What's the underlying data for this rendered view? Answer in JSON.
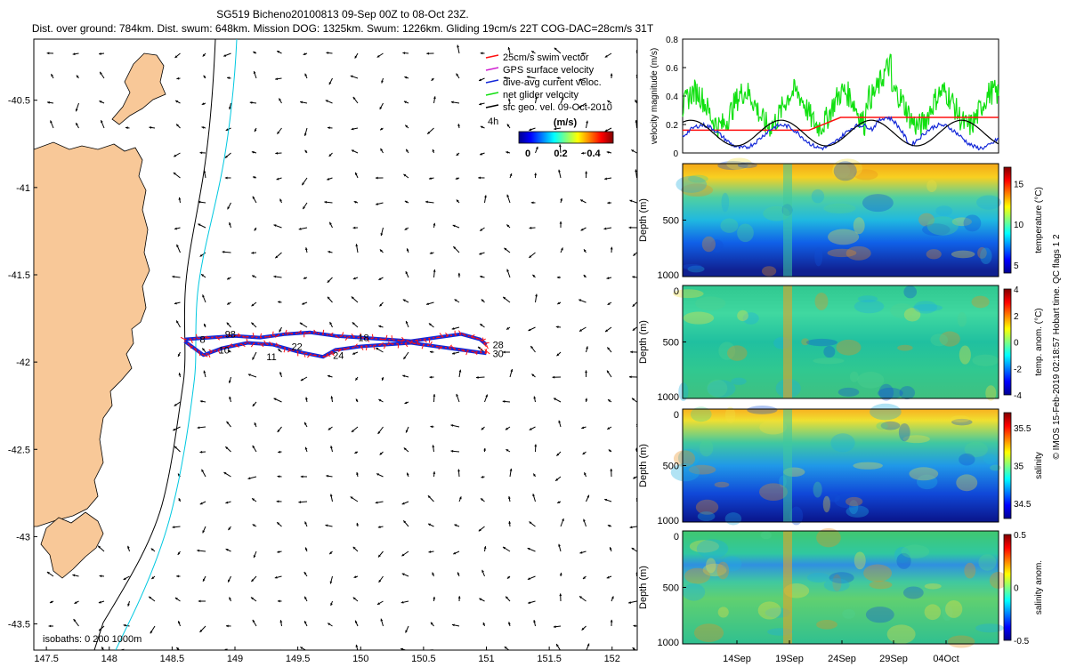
{
  "header": {
    "title_line1": "SG519 Bicheno20100813 09-Sep 00Z to 08-Oct 23Z.",
    "title_line2": "Dist. over ground: 784km. Dist. swum: 648km. Mission DOG: 1325km. Swum: 1226km. Gliding 19cm/s 22T COG-DAC=28cm/s 31T"
  },
  "colors": {
    "land": "#f8c898",
    "isobath_200": "#000000",
    "isobath_1000": "#00c8e0",
    "track_blue": "#1428d8",
    "swim_red": "#ff1010",
    "gps_magenta": "#d020d0",
    "net_green": "#10e010",
    "geo_black": "#000000"
  },
  "chart_data": [
    {
      "type": "scatter",
      "name": "map",
      "xlim": [
        147.4,
        152.2
      ],
      "ylim": [
        -43.65,
        -40.15
      ],
      "xticks": [
        "147.5",
        "148",
        "148.5",
        "149",
        "149.5",
        "150",
        "150.5",
        "151",
        "151.5",
        "152"
      ],
      "yticks": [
        "-40.5",
        "-41",
        "-41.5",
        "-42",
        "-42.5",
        "-43",
        "-43.5"
      ],
      "legend": {
        "placement": "top-right",
        "items": [
          {
            "label": "25cm/s swim vector",
            "color": "#ff1010"
          },
          {
            "label": "GPS surface velocity",
            "color": "#d020d0"
          },
          {
            "label": "dive-avg current veloc.",
            "color": "#1428d8"
          },
          {
            "label": "net glider velocity",
            "color": "#10e010"
          },
          {
            "label": "sfc geo. vel. 09-Oct-2010",
            "color": "#000000"
          }
        ],
        "extra": "4h"
      },
      "colorbar": {
        "label": "(m/s)",
        "ticks": [
          "0",
          "0.2",
          "0.4"
        ],
        "range": [
          0,
          0.5
        ]
      },
      "isobath_note": "isobaths: 0   200   1000m",
      "track_outbound": [
        [
          148.6,
          -41.87
        ],
        [
          148.8,
          -41.86
        ],
        [
          149.0,
          -41.85
        ],
        [
          149.2,
          -41.86
        ],
        [
          149.4,
          -41.84
        ],
        [
          149.6,
          -41.83
        ],
        [
          149.8,
          -41.85
        ],
        [
          150.0,
          -41.86
        ],
        [
          150.2,
          -41.87
        ],
        [
          150.4,
          -41.88
        ],
        [
          150.6,
          -41.86
        ],
        [
          150.8,
          -41.84
        ],
        [
          150.95,
          -41.87
        ],
        [
          151.0,
          -41.9
        ]
      ],
      "track_return": [
        [
          151.0,
          -41.95
        ],
        [
          150.8,
          -41.93
        ],
        [
          150.6,
          -41.91
        ],
        [
          150.4,
          -41.89
        ],
        [
          150.2,
          -41.9
        ],
        [
          150.0,
          -41.91
        ],
        [
          149.8,
          -41.93
        ],
        [
          149.7,
          -41.97
        ],
        [
          149.5,
          -41.94
        ],
        [
          149.3,
          -41.9
        ],
        [
          149.1,
          -41.89
        ],
        [
          148.9,
          -41.92
        ],
        [
          148.75,
          -41.96
        ],
        [
          148.6,
          -41.88
        ]
      ],
      "track_labels": [
        {
          "text": "8",
          "lon": 148.72,
          "lat": -41.87
        },
        {
          "text": "98",
          "lon": 148.92,
          "lat": -41.84
        },
        {
          "text": "10",
          "lon": 148.87,
          "lat": -41.93
        },
        {
          "text": "11",
          "lon": 149.25,
          "lat": -41.97
        },
        {
          "text": "22",
          "lon": 149.45,
          "lat": -41.91
        },
        {
          "text": "24",
          "lon": 149.78,
          "lat": -41.96
        },
        {
          "text": "18",
          "lon": 149.98,
          "lat": -41.86
        },
        {
          "text": "28",
          "lon": 151.05,
          "lat": -41.9
        },
        {
          "text": "30",
          "lon": 151.05,
          "lat": -41.95
        }
      ]
    },
    {
      "type": "line",
      "name": "velocity",
      "ylabel": "velocity magnitude (m/s)",
      "ylim": [
        0,
        0.8
      ],
      "yticks": [
        "0",
        "0.2",
        "0.4",
        "0.6",
        "0.8"
      ],
      "xlim": [
        9,
        39
      ],
      "series": [
        {
          "name": "net glider velocity",
          "color": "#10e010"
        },
        {
          "name": "dive-avg current veloc.",
          "color": "#1428d8"
        },
        {
          "name": "25cm/s swim vector",
          "color": "#ff1010"
        },
        {
          "name": "sfc geo. vel.",
          "color": "#000000"
        }
      ]
    },
    {
      "type": "heatmap",
      "name": "temperature",
      "ylabel": "Depth (m)",
      "clabel": "temperature (°C)",
      "yticks": [
        "500",
        "1000"
      ],
      "cticks": [
        "15",
        "10",
        "5"
      ],
      "crange": [
        4,
        17
      ]
    },
    {
      "type": "heatmap",
      "name": "temp-anomaly",
      "ylabel": "Depth (m)",
      "clabel": "temp. anom. (°C)",
      "yticks": [
        "0",
        "500",
        "1000"
      ],
      "cticks": [
        "4",
        "2",
        "0",
        "-2",
        "-4"
      ],
      "crange": [
        -4,
        4
      ]
    },
    {
      "type": "heatmap",
      "name": "salinity",
      "ylabel": "Depth (m)",
      "clabel": "salinity",
      "yticks": [
        "0",
        "500",
        "1000"
      ],
      "cticks": [
        "35.5",
        "35",
        "34.5"
      ],
      "crange": [
        34.3,
        35.7
      ]
    },
    {
      "type": "heatmap",
      "name": "salinity-anomaly",
      "ylabel": "Depth (m)",
      "clabel": "salinity anom.",
      "yticks": [
        "0",
        "500",
        "1000"
      ],
      "cticks": [
        "0.5",
        "0",
        "-0.5"
      ],
      "crange": [
        -0.5,
        0.5
      ],
      "xticks": [
        "14Sep",
        "19Sep",
        "24Sep",
        "29Sep",
        "04Oct"
      ]
    }
  ],
  "footer": {
    "vertical_note": "© IMOS 15-Feb-2019 02:18:57 Hobart time. QC flags 1  2"
  }
}
